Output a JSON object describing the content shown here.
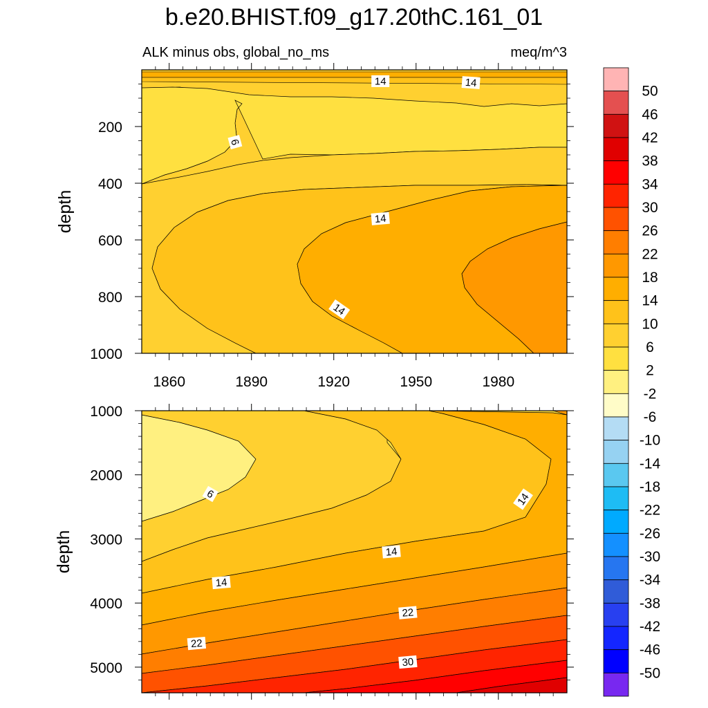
{
  "title": "b.e20.BHIST.f09_g17.20thC.161_01",
  "subtitle_left": "ALK minus obs, global_no_ms",
  "subtitle_right": "meq/m^3",
  "colorbar": {
    "labels": [
      "50",
      "46",
      "42",
      "38",
      "34",
      "30",
      "26",
      "22",
      "18",
      "14",
      "10",
      "6",
      "2",
      "-2",
      "-6",
      "-10",
      "-14",
      "-18",
      "-22",
      "-26",
      "-30",
      "-34",
      "-38",
      "-42",
      "-46",
      "-50"
    ],
    "colors": [
      "#ffb4b4",
      "#e45050",
      "#d01212",
      "#e00000",
      "#ff0000",
      "#ff2400",
      "#ff5200",
      "#ff7e00",
      "#ff9800",
      "#ffae00",
      "#ffc21a",
      "#ffd030",
      "#ffe040",
      "#fff080",
      "#fffcc8",
      "#b4dcf4",
      "#96d2f2",
      "#5ac8f0",
      "#1ebcf4",
      "#00aaff",
      "#1490ff",
      "#2676f0",
      "#305cd8",
      "#2840f0",
      "#1426ff",
      "#0000ff",
      "#7828f0"
    ]
  },
  "chart_data": [
    {
      "type": "contour",
      "panel": "top",
      "title": "b.e20.BHIST.f09_g17.20thC.161_01",
      "subtitle": "ALK minus obs, global_no_ms",
      "units": "meq/m^3",
      "xlabel": "",
      "ylabel": "depth",
      "xlim": [
        1850,
        2005
      ],
      "ylim": [
        1000,
        0
      ],
      "xticks": [
        1860,
        1890,
        1920,
        1950,
        1980
      ],
      "xtick_labels": [
        "1860",
        "1890",
        "1920",
        "1950",
        "1980"
      ],
      "yticks": [
        200,
        400,
        600,
        800,
        1000
      ],
      "ytick_labels": [
        "200",
        "400",
        "600",
        "800",
        "1000"
      ],
      "contour_labels": [
        {
          "text": "14",
          "year": 1937,
          "depth": 40
        },
        {
          "text": "14",
          "year": 1970,
          "depth": 45
        },
        {
          "text": "6",
          "year": 1884,
          "depth": 255
        },
        {
          "text": "14",
          "year": 1937,
          "depth": 525
        },
        {
          "text": "14",
          "year": 1922,
          "depth": 845
        }
      ],
      "regions": [
        {
          "level": "10 to 14",
          "color": "#ffd030"
        },
        {
          "level": "2 to 6",
          "color": "#fff080"
        },
        {
          "level": "6 to 10",
          "color": "#ffe040"
        },
        {
          "level": "10 to 14",
          "color": "#ffd030"
        },
        {
          "level": "14 to 18",
          "color": "#ffc21a"
        },
        {
          "level": "18 to 22",
          "color": "#ffae00"
        },
        {
          "level": "22 to 26",
          "color": "#ff9800"
        }
      ]
    },
    {
      "type": "contour",
      "panel": "bottom",
      "xlabel": "",
      "ylabel": "depth",
      "xlim": [
        1850,
        2005
      ],
      "ylim": [
        5400,
        1000
      ],
      "yticks": [
        1000,
        2000,
        3000,
        4000,
        5000
      ],
      "ytick_labels": [
        "1000",
        "2000",
        "3000",
        "4000",
        "5000"
      ],
      "contour_labels": [
        {
          "text": "6",
          "year": 1875,
          "depth": 2300
        },
        {
          "text": "14",
          "year": 1989,
          "depth": 2380
        },
        {
          "text": "14",
          "year": 1941,
          "depth": 3200
        },
        {
          "text": "14",
          "year": 1879,
          "depth": 3680
        },
        {
          "text": "22",
          "year": 1947,
          "depth": 4150
        },
        {
          "text": "22",
          "year": 1870,
          "depth": 4630
        },
        {
          "text": "30",
          "year": 1947,
          "depth": 4920
        }
      ],
      "regions": [
        {
          "level": "6 to 10",
          "color": "#ffe040"
        },
        {
          "level": "2 to 6",
          "color": "#fff080"
        },
        {
          "level": "10 to 14",
          "color": "#ffd030"
        },
        {
          "level": "14 to 18",
          "color": "#ffc21a"
        },
        {
          "level": "18 to 22",
          "color": "#ffae00"
        },
        {
          "level": "22 to 26",
          "color": "#ff9800"
        },
        {
          "level": "26 to 30",
          "color": "#ff7e00"
        },
        {
          "level": "30 to 34",
          "color": "#ff5200"
        },
        {
          "level": "34 to 38",
          "color": "#ff2400"
        },
        {
          "level": "38 to 42",
          "color": "#ff0000"
        },
        {
          "level": "42 to 46",
          "color": "#e00000"
        }
      ]
    }
  ]
}
